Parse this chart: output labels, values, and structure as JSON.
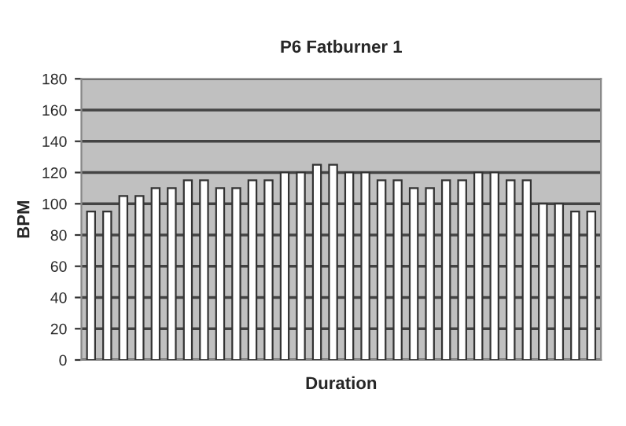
{
  "chart_data": {
    "type": "bar",
    "title": "P6 Fatburner 1",
    "xlabel": "Duration",
    "ylabel": "BPM",
    "categories": [
      null,
      null,
      null,
      null,
      null,
      null,
      null,
      null,
      null,
      null,
      null,
      null,
      null,
      null,
      null,
      null,
      null,
      null,
      null,
      null,
      null,
      null,
      null,
      null,
      null,
      null,
      null,
      null,
      null,
      null,
      null,
      null
    ],
    "values": [
      95,
      95,
      105,
      105,
      110,
      110,
      115,
      115,
      110,
      110,
      115,
      115,
      120,
      120,
      125,
      125,
      120,
      120,
      115,
      115,
      110,
      110,
      115,
      115,
      120,
      120,
      115,
      115,
      100,
      100,
      95,
      95
    ],
    "color": "#ffffff",
    "ylim": [
      0,
      180
    ],
    "yticks": [
      0,
      20,
      40,
      60,
      80,
      100,
      120,
      140,
      160,
      180
    ],
    "grid": "y"
  }
}
